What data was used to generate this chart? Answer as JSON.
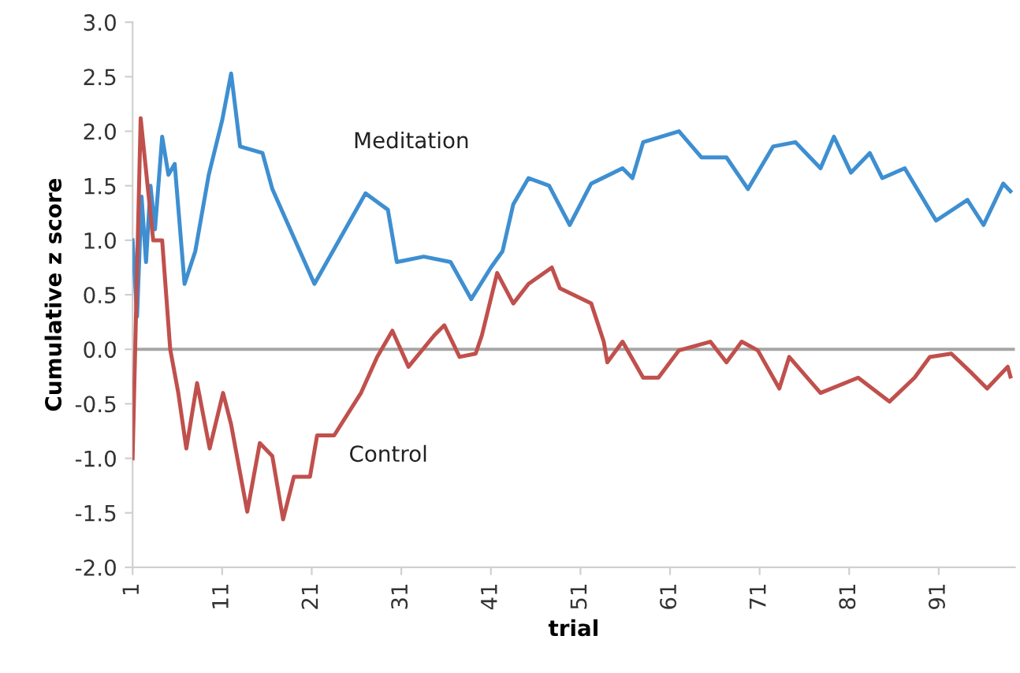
{
  "chart_data": {
    "type": "line",
    "xlabel": "trial",
    "ylabel": "Cumulative z score",
    "xlim": [
      1,
      99.5
    ],
    "xticks": [
      1,
      11,
      21,
      31,
      41,
      51,
      61,
      71,
      81,
      91
    ],
    "ylim": [
      -2.0,
      3.0
    ],
    "yticks": [
      {
        "value": -2,
        "label": "-2.0"
      },
      {
        "value": -1.5,
        "label": "-1.5"
      },
      {
        "value": -1,
        "label": "-1.0"
      },
      {
        "value": -0.5,
        "label": "-0.5"
      },
      {
        "value": 0,
        "label": "0.0"
      },
      {
        "value": 0.5,
        "label": "0.5"
      },
      {
        "value": 1,
        "label": "1.0"
      },
      {
        "value": 1.5,
        "label": "1.5"
      },
      {
        "value": 2,
        "label": "2.0"
      },
      {
        "value": 2.5,
        "label": "2.5"
      },
      {
        "value": 3,
        "label": "3.0"
      }
    ],
    "grid": false,
    "legend": false,
    "ref_lines": [
      {
        "axis": "y",
        "value": 0,
        "color": "#a6a6a6"
      }
    ],
    "series": [
      {
        "name": "Meditation",
        "color": "#3e8fd1",
        "x": [
          1,
          1.5,
          2,
          2.5,
          3,
          3.5,
          4.3,
          5,
          5.7,
          6.8,
          8,
          9.5,
          11,
          12,
          13,
          15.5,
          16.6,
          21.3,
          27,
          29.5,
          30.5,
          33.5,
          36.5,
          38.8,
          41,
          42.3,
          43.5,
          45.2,
          47.5,
          49.8,
          52.2,
          55.7,
          56.8,
          58,
          62,
          64.5,
          67.3,
          69.7,
          72.5,
          75,
          77.8,
          79.3,
          81.2,
          83.3,
          84.7,
          87.2,
          90.7,
          94.2,
          96,
          98.2,
          99
        ],
        "values": [
          1.0,
          0.3,
          1.4,
          0.8,
          1.5,
          1.1,
          1.95,
          1.6,
          1.7,
          0.6,
          0.9,
          1.6,
          2.1,
          2.53,
          1.86,
          1.8,
          1.47,
          0.6,
          1.43,
          1.28,
          0.8,
          0.85,
          0.8,
          0.46,
          0.75,
          0.9,
          1.33,
          1.57,
          1.5,
          1.14,
          1.52,
          1.66,
          1.57,
          1.9,
          2.0,
          1.76,
          1.76,
          1.47,
          1.86,
          1.9,
          1.66,
          1.95,
          1.62,
          1.8,
          1.57,
          1.66,
          1.18,
          1.37,
          1.14,
          1.52,
          1.45
        ]
      },
      {
        "name": "Control",
        "color": "#c0504d",
        "x": [
          1,
          1.9,
          3.3,
          4.3,
          5.2,
          6.1,
          7,
          8.2,
          9.6,
          11.1,
          12,
          13.8,
          15.2,
          16.6,
          17.8,
          19,
          20.8,
          21.6,
          23.5,
          26.5,
          28.3,
          30,
          31.8,
          34.7,
          35.8,
          37.5,
          39.3,
          40,
          41.7,
          43.5,
          45.2,
          47.8,
          48.7,
          52.2,
          53.6,
          54,
          55.7,
          58,
          59.7,
          62,
          65.5,
          67.3,
          69,
          70.8,
          73.2,
          74.3,
          77.8,
          82,
          85.5,
          88.3,
          90,
          92.4,
          94.7,
          96.4,
          98.7,
          99
        ],
        "values": [
          -1.0,
          2.12,
          1.0,
          1.0,
          0.0,
          -0.4,
          -0.91,
          -0.31,
          -0.91,
          -0.4,
          -0.69,
          -1.49,
          -0.86,
          -0.98,
          -1.56,
          -1.17,
          -1.17,
          -0.79,
          -0.79,
          -0.4,
          -0.07,
          0.17,
          -0.16,
          0.13,
          0.22,
          -0.07,
          -0.04,
          0.13,
          0.7,
          0.42,
          0.6,
          0.75,
          0.56,
          0.42,
          0.07,
          -0.12,
          0.07,
          -0.26,
          -0.26,
          -0.01,
          0.07,
          -0.12,
          0.07,
          -0.01,
          -0.36,
          -0.07,
          -0.4,
          -0.26,
          -0.48,
          -0.26,
          -0.07,
          -0.04,
          -0.22,
          -0.36,
          -0.16,
          -0.25
        ]
      }
    ]
  }
}
